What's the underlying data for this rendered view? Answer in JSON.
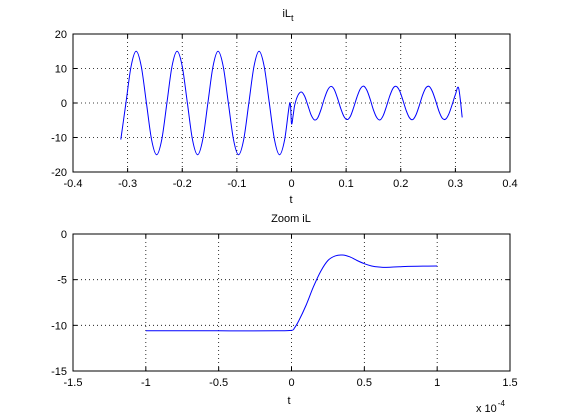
{
  "chart_data": [
    {
      "type": "line",
      "title": "iL",
      "title_subscript": "t",
      "xlabel": "t",
      "ylabel": "",
      "xlim": [
        -0.4,
        0.4
      ],
      "ylim": [
        -20,
        20
      ],
      "xticks": [
        -0.4,
        -0.3,
        -0.2,
        -0.1,
        0,
        0.1,
        0.2,
        0.3,
        0.4
      ],
      "xtick_labels": [
        "-0.4",
        "-0.3",
        "-0.2",
        "-0.1",
        "0",
        "0.1",
        "0.2",
        "0.3",
        "0.4"
      ],
      "yticks": [
        -20,
        -10,
        0,
        10,
        20
      ],
      "ytick_labels": [
        "-20",
        "-10",
        "0",
        "10",
        "20"
      ],
      "grid": true,
      "series": [
        {
          "color": "#0000ff",
          "x": [
            -0.3125,
            -0.3031,
            -0.2937,
            -0.2844,
            -0.275,
            -0.2656,
            -0.2562,
            -0.2469,
            -0.2375,
            -0.2281,
            -0.2188,
            -0.2094,
            -0.2,
            -0.1906,
            -0.1813,
            -0.1719,
            -0.1625,
            -0.1531,
            -0.1437,
            -0.1344,
            -0.125,
            -0.1156,
            -0.1062,
            -0.0969,
            -0.0875,
            -0.0781,
            -0.0687,
            -0.0594,
            -0.05,
            -0.0406,
            -0.0312,
            -0.0219,
            -0.0125,
            -0.0031,
            0,
            0.0031,
            0.006,
            0.012,
            0.018,
            0.024,
            0.03,
            0.036,
            0.042,
            0.048,
            0.054,
            0.06,
            0.066,
            0.072,
            0.078,
            0.084,
            0.09,
            0.096,
            0.102,
            0.108,
            0.114,
            0.12,
            0.126,
            0.132,
            0.138,
            0.144,
            0.15,
            0.156,
            0.162,
            0.168,
            0.174,
            0.18,
            0.186,
            0.192,
            0.198,
            0.204,
            0.21,
            0.216,
            0.222,
            0.228,
            0.234,
            0.24,
            0.246,
            0.252,
            0.258,
            0.264,
            0.27,
            0.276,
            0.282,
            0.288,
            0.294,
            0.3,
            0.306,
            0.3125
          ],
          "y": [
            -10.6,
            0,
            10.6,
            15,
            10.6,
            0,
            -10.6,
            -15,
            -10.6,
            0,
            10.6,
            15,
            10.6,
            0,
            -10.6,
            -15,
            -10.6,
            0,
            10.6,
            15,
            10.6,
            0,
            -10.6,
            -15,
            -10.6,
            0,
            10.6,
            15,
            10.6,
            0,
            -10.6,
            -15,
            -10.6,
            0,
            -6,
            -3.5,
            -0.5,
            2.3,
            3.2,
            2,
            -0.7,
            -3.5,
            -4.9,
            -4.3,
            -1.9,
            1.2,
            3.7,
            4.8,
            4,
            1.5,
            -1.5,
            -3.9,
            -4.8,
            -3.8,
            -1.2,
            1.8,
            4.1,
            4.9,
            3.7,
            1.1,
            -2,
            -4.2,
            -4.9,
            -3.6,
            -0.9,
            2.1,
            4.3,
            4.8,
            3.5,
            0.8,
            -2.2,
            -4.3,
            -4.8,
            -3.4,
            -0.7,
            2.3,
            4.4,
            4.8,
            3.3,
            0.6,
            -2.4,
            -4.4,
            -4.7,
            -3.2,
            -0.5,
            2.4,
            4.3,
            -4.2
          ]
        }
      ]
    },
    {
      "type": "line",
      "title": "Zoom iL",
      "xlabel": "t",
      "ylabel": "",
      "xlim": [
        -1.5,
        1.5
      ],
      "ylim": [
        -15,
        0
      ],
      "x_exponent_label": "x 10",
      "x_exponent": "-4",
      "xticks": [
        -1.5,
        -1,
        -0.5,
        0,
        0.5,
        1,
        1.5
      ],
      "xtick_labels": [
        "-1.5",
        "-1",
        "-0.5",
        "0",
        "0.5",
        "1",
        "1.5"
      ],
      "yticks": [
        -15,
        -10,
        -5,
        0
      ],
      "ytick_labels": [
        "-15",
        "-10",
        "-5",
        "0"
      ],
      "grid": true,
      "series": [
        {
          "color": "#0000ff",
          "x": [
            -1,
            -0.5,
            -0.1,
            0,
            0.02,
            0.05,
            0.1,
            0.15,
            0.2,
            0.25,
            0.3,
            0.35,
            0.4,
            0.45,
            0.5,
            0.55,
            0.6,
            0.65,
            0.7,
            0.75,
            0.8,
            0.9,
            1.0
          ],
          "y": [
            -10.6,
            -10.6,
            -10.6,
            -10.55,
            -10.3,
            -9.5,
            -7.8,
            -5.8,
            -4.1,
            -2.9,
            -2.4,
            -2.3,
            -2.5,
            -2.9,
            -3.25,
            -3.5,
            -3.62,
            -3.65,
            -3.62,
            -3.58,
            -3.55,
            -3.52,
            -3.5
          ]
        }
      ]
    }
  ]
}
